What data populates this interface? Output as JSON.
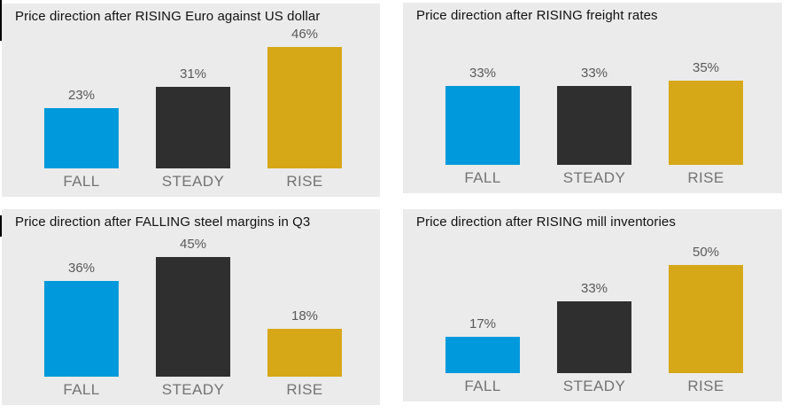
{
  "page": {
    "background": "#ffffff",
    "description_layout": "2x2 grid of gray survey bar-chart panels"
  },
  "colors": {
    "panel_bg": "#ebebeb",
    "title_text": "#111111",
    "value_label": "#595959",
    "category_label": "#737373",
    "bars": {
      "FALL": "#0099db",
      "STEADY": "#2f2f2f",
      "RISE": "#d6a717"
    }
  },
  "chart_data": [
    {
      "type": "bar",
      "title": "Price direction after RISING Euro against US dollar",
      "categories": [
        "FALL",
        "STEADY",
        "RISE"
      ],
      "values": [
        23,
        31,
        46
      ],
      "value_labels": [
        "23%",
        "31%",
        "46%"
      ],
      "xlabel": "",
      "ylabel": "",
      "ylim": [
        0,
        50
      ],
      "grid": "off",
      "legend": "none",
      "data_labels": "percent above each bar",
      "axes": "hidden"
    },
    {
      "type": "bar",
      "title": "Price direction after RISING freight rates",
      "categories": [
        "FALL",
        "STEADY",
        "RISE"
      ],
      "values": [
        33,
        33,
        35
      ],
      "value_labels": [
        "33%",
        "33%",
        "35%"
      ],
      "xlabel": "",
      "ylabel": "",
      "ylim": [
        0,
        55
      ],
      "grid": "off",
      "legend": "none",
      "data_labels": "percent above each bar",
      "axes": "hidden"
    },
    {
      "type": "bar",
      "title": "Price direction after FALLING steel margins in Q3",
      "categories": [
        "FALL",
        "STEADY",
        "RISE"
      ],
      "values": [
        36,
        45,
        18
      ],
      "value_labels": [
        "36%",
        "45%",
        "18%"
      ],
      "xlabel": "",
      "ylabel": "",
      "ylim": [
        0,
        50
      ],
      "grid": "off",
      "legend": "none",
      "data_labels": "percent above each bar",
      "axes": "hidden"
    },
    {
      "type": "bar",
      "title": "Price direction after RISING mill inventories",
      "categories": [
        "FALL",
        "STEADY",
        "RISE"
      ],
      "values": [
        17,
        33,
        50
      ],
      "value_labels": [
        "17%",
        "33%",
        "50%"
      ],
      "xlabel": "",
      "ylabel": "",
      "ylim": [
        0,
        62
      ],
      "grid": "off",
      "legend": "none",
      "data_labels": "percent above each bar",
      "axes": "hidden"
    }
  ]
}
